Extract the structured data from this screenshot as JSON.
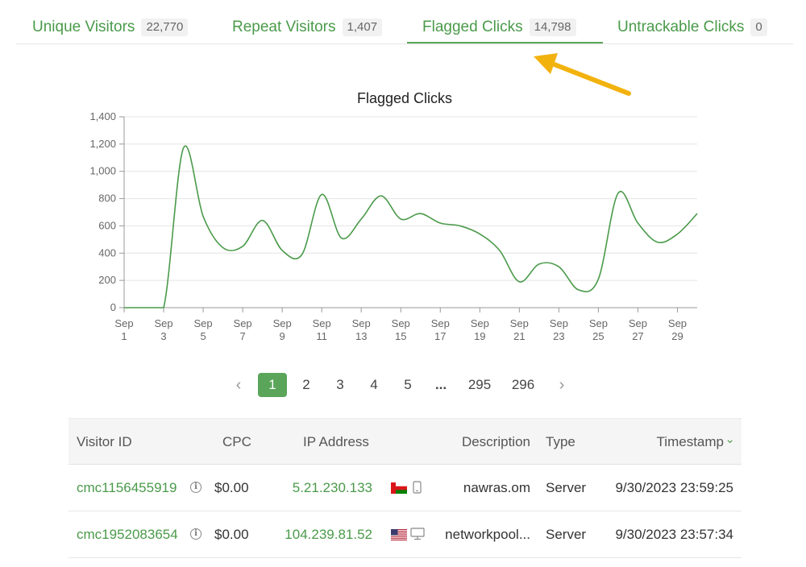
{
  "tabs": [
    {
      "label": "Unique Visitors",
      "count": "22,770"
    },
    {
      "label": "Repeat Visitors",
      "count": "1,407"
    },
    {
      "label": "Flagged Clicks",
      "count": "14,798"
    },
    {
      "label": "Untrackable Clicks",
      "count": "0"
    }
  ],
  "active_tab": "Flagged Clicks",
  "colors": {
    "accent": "#5aa55a",
    "link": "#4a9a4a",
    "arrow": "#f2b20e"
  },
  "chart_data": {
    "type": "line",
    "title": "Flagged Clicks",
    "xlabel": "",
    "ylabel": "",
    "ylim": [
      0,
      1400
    ],
    "yticks": [
      "0",
      "200",
      "400",
      "600",
      "800",
      "1,000",
      "1,200",
      "1,400"
    ],
    "xtick_labels": [
      [
        "Sep",
        "1"
      ],
      [
        "Sep",
        "3"
      ],
      [
        "Sep",
        "5"
      ],
      [
        "Sep",
        "7"
      ],
      [
        "Sep",
        "9"
      ],
      [
        "Sep",
        "11"
      ],
      [
        "Sep",
        "13"
      ],
      [
        "Sep",
        "15"
      ],
      [
        "Sep",
        "17"
      ],
      [
        "Sep",
        "19"
      ],
      [
        "Sep",
        "21"
      ],
      [
        "Sep",
        "23"
      ],
      [
        "Sep",
        "25"
      ],
      [
        "Sep",
        "27"
      ],
      [
        "Sep",
        "29"
      ]
    ],
    "grid": true,
    "series": [
      {
        "values": [
          {
            "x": "Sep 1",
            "y": 0
          },
          {
            "x": "Sep 2",
            "y": 0
          },
          {
            "x": "Sep 3",
            "y": 0
          },
          {
            "x": "Sep 4",
            "y": 1170
          },
          {
            "x": "Sep 5",
            "y": 670
          },
          {
            "x": "Sep 6",
            "y": 440
          },
          {
            "x": "Sep 7",
            "y": 450
          },
          {
            "x": "Sep 8",
            "y": 640
          },
          {
            "x": "Sep 9",
            "y": 420
          },
          {
            "x": "Sep 10",
            "y": 390
          },
          {
            "x": "Sep 11",
            "y": 830
          },
          {
            "x": "Sep 12",
            "y": 510
          },
          {
            "x": "Sep 13",
            "y": 650
          },
          {
            "x": "Sep 14",
            "y": 820
          },
          {
            "x": "Sep 15",
            "y": 650
          },
          {
            "x": "Sep 16",
            "y": 690
          },
          {
            "x": "Sep 17",
            "y": 620
          },
          {
            "x": "Sep 18",
            "y": 600
          },
          {
            "x": "Sep 19",
            "y": 540
          },
          {
            "x": "Sep 20",
            "y": 420
          },
          {
            "x": "Sep 21",
            "y": 190
          },
          {
            "x": "Sep 22",
            "y": 320
          },
          {
            "x": "Sep 23",
            "y": 300
          },
          {
            "x": "Sep 24",
            "y": 130
          },
          {
            "x": "Sep 25",
            "y": 210
          },
          {
            "x": "Sep 26",
            "y": 840
          },
          {
            "x": "Sep 27",
            "y": 620
          },
          {
            "x": "Sep 28",
            "y": 480
          },
          {
            "x": "Sep 29",
            "y": 540
          },
          {
            "x": "Sep 30",
            "y": 690
          }
        ]
      }
    ],
    "line_color": "#4a9a4a"
  },
  "pagination": {
    "prev": "‹",
    "next": "›",
    "pages": [
      "1",
      "2",
      "3",
      "4",
      "5",
      "...",
      "295",
      "296"
    ],
    "current": "1"
  },
  "table": {
    "headers": {
      "visitor_id": "Visitor ID",
      "cpc": "CPC",
      "ip": "IP Address",
      "description": "Description",
      "type": "Type",
      "timestamp": "Timestamp"
    },
    "sort_indicator": "⌄",
    "info_glyph": "i",
    "rows": [
      {
        "visitor_id": "cmc1156455919",
        "cpc": "$0.00",
        "ip": "5.21.230.133",
        "flag": "oman-flag-icon",
        "device": "mobile-icon",
        "description": "nawras.om",
        "type": "Server",
        "timestamp": "9/30/2023 23:59:25"
      },
      {
        "visitor_id": "cmc1952083654",
        "cpc": "$0.00",
        "ip": "104.239.81.52",
        "flag": "us-flag-icon",
        "device": "desktop-icon",
        "description": "networkpool...",
        "type": "Server",
        "timestamp": "9/30/2023 23:57:34"
      }
    ]
  }
}
